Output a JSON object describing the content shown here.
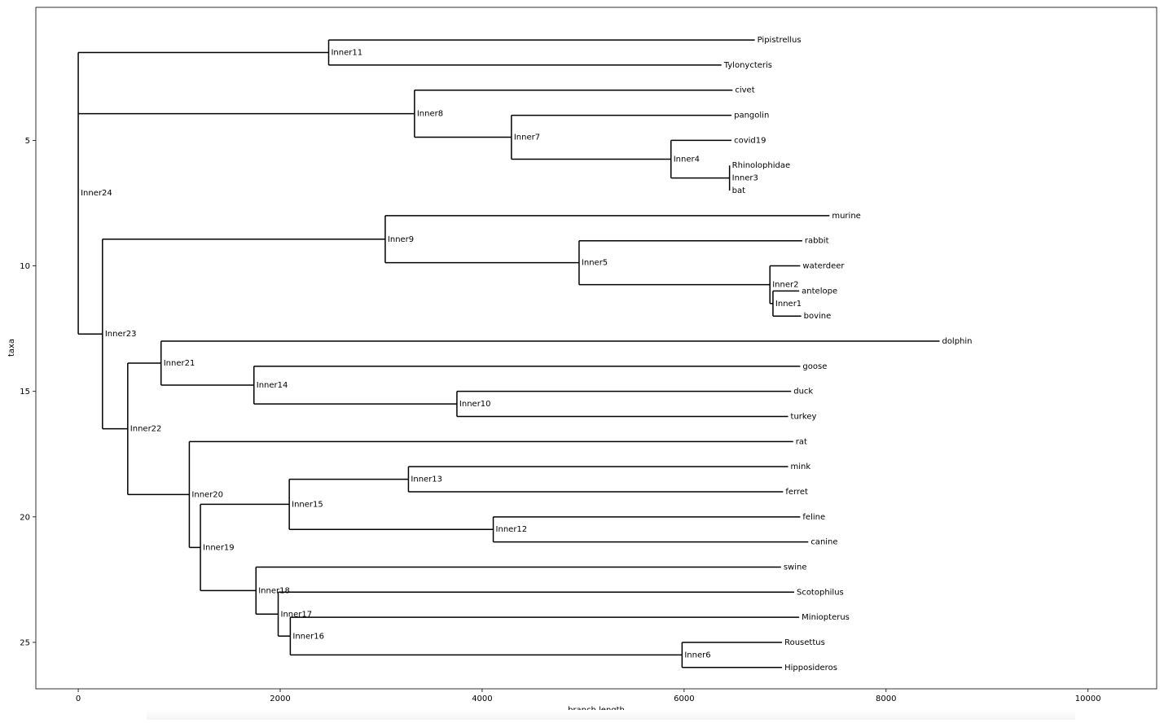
{
  "chart_data": {
    "type": "dendrogram",
    "xlabel": "branch length",
    "ylabel": "taxa",
    "xlim": [
      -420,
      10680
    ],
    "ylim": [
      26.85,
      -0.3
    ],
    "x_ticks": [
      0,
      2000,
      4000,
      6000,
      8000,
      10000
    ],
    "y_ticks": [
      5,
      10,
      15,
      20,
      25
    ],
    "grid": false,
    "leaves": [
      {
        "name": "Pipistrellus",
        "x": 6700,
        "y": 1
      },
      {
        "name": "Tylonycteris",
        "x": 6370,
        "y": 2
      },
      {
        "name": "civet",
        "x": 6480,
        "y": 3
      },
      {
        "name": "pangolin",
        "x": 6470,
        "y": 4
      },
      {
        "name": "covid19",
        "x": 6470,
        "y": 5
      },
      {
        "name": "Rhinolophidae",
        "x": 6450,
        "y": 6
      },
      {
        "name": "bat",
        "x": 6450,
        "y": 7
      },
      {
        "name": "murine",
        "x": 7440,
        "y": 8
      },
      {
        "name": "rabbit",
        "x": 7170,
        "y": 9
      },
      {
        "name": "waterdeer",
        "x": 7150,
        "y": 10
      },
      {
        "name": "antelope",
        "x": 7140,
        "y": 11
      },
      {
        "name": "bovine",
        "x": 7160,
        "y": 12
      },
      {
        "name": "dolphin",
        "x": 8530,
        "y": 13
      },
      {
        "name": "goose",
        "x": 7150,
        "y": 14
      },
      {
        "name": "duck",
        "x": 7060,
        "y": 15
      },
      {
        "name": "turkey",
        "x": 7030,
        "y": 16
      },
      {
        "name": "rat",
        "x": 7080,
        "y": 17
      },
      {
        "name": "mink",
        "x": 7030,
        "y": 18
      },
      {
        "name": "ferret",
        "x": 6980,
        "y": 19
      },
      {
        "name": "feline",
        "x": 7150,
        "y": 20
      },
      {
        "name": "canine",
        "x": 7230,
        "y": 21
      },
      {
        "name": "swine",
        "x": 6960,
        "y": 22
      },
      {
        "name": "Scotophilus",
        "x": 7090,
        "y": 23
      },
      {
        "name": "Miniopterus",
        "x": 7140,
        "y": 24
      },
      {
        "name": "Rousettus",
        "x": 6970,
        "y": 25
      },
      {
        "name": "Hipposideros",
        "x": 6970,
        "y": 26
      }
    ],
    "inner_nodes": [
      {
        "name": "Inner1",
        "x": 6880,
        "y": 11.5,
        "children": [
          "antelope",
          "bovine"
        ]
      },
      {
        "name": "Inner2",
        "x": 6850,
        "y": 10.75,
        "children": [
          "waterdeer",
          "Inner1"
        ]
      },
      {
        "name": "Inner3",
        "x": 6450,
        "y": 6.5,
        "children": [
          "Rhinolophidae",
          "bat"
        ]
      },
      {
        "name": "Inner4",
        "x": 5870,
        "y": 5.75,
        "children": [
          "covid19",
          "Inner3"
        ]
      },
      {
        "name": "Inner5",
        "x": 4960,
        "y": 9.875,
        "children": [
          "rabbit",
          "Inner2"
        ]
      },
      {
        "name": "Inner6",
        "x": 5980,
        "y": 25.5,
        "children": [
          "Rousettus",
          "Hipposideros"
        ]
      },
      {
        "name": "Inner7",
        "x": 4290,
        "y": 4.875,
        "children": [
          "pangolin",
          "Inner4"
        ]
      },
      {
        "name": "Inner8",
        "x": 3330,
        "y": 3.9375,
        "children": [
          "civet",
          "Inner7"
        ]
      },
      {
        "name": "Inner9",
        "x": 3040,
        "y": 8.9375,
        "children": [
          "murine",
          "Inner5"
        ]
      },
      {
        "name": "Inner10",
        "x": 3750,
        "y": 15.5,
        "children": [
          "duck",
          "turkey"
        ]
      },
      {
        "name": "Inner11",
        "x": 2480,
        "y": 1.5,
        "children": [
          "Pipistrellus",
          "Tylonycteris"
        ]
      },
      {
        "name": "Inner12",
        "x": 4110,
        "y": 20.5,
        "children": [
          "feline",
          "canine"
        ]
      },
      {
        "name": "Inner13",
        "x": 3270,
        "y": 18.5,
        "children": [
          "mink",
          "ferret"
        ]
      },
      {
        "name": "Inner14",
        "x": 1740,
        "y": 14.75,
        "children": [
          "goose",
          "Inner10"
        ]
      },
      {
        "name": "Inner15",
        "x": 2090,
        "y": 19.5,
        "children": [
          "Inner13",
          "Inner12"
        ]
      },
      {
        "name": "Inner16",
        "x": 2100,
        "y": 24.75,
        "children": [
          "Miniopterus",
          "Inner6"
        ]
      },
      {
        "name": "Inner17",
        "x": 1980,
        "y": 23.875,
        "children": [
          "Scotophilus",
          "Inner16"
        ]
      },
      {
        "name": "Inner18",
        "x": 1760,
        "y": 22.9375,
        "children": [
          "swine",
          "Inner17"
        ]
      },
      {
        "name": "Inner19",
        "x": 1210,
        "y": 21.21875,
        "children": [
          "Inner15",
          "Inner18"
        ]
      },
      {
        "name": "Inner20",
        "x": 1100,
        "y": 19.109375,
        "children": [
          "rat",
          "Inner19"
        ]
      },
      {
        "name": "Inner21",
        "x": 820,
        "y": 13.875,
        "children": [
          "dolphin",
          "Inner14"
        ]
      },
      {
        "name": "Inner22",
        "x": 490,
        "y": 16.4921875,
        "children": [
          "Inner21",
          "Inner20"
        ]
      },
      {
        "name": "Inner23",
        "x": 240,
        "y": 12.71484375,
        "children": [
          "Inner9",
          "Inner22"
        ]
      },
      {
        "name": "Inner24",
        "x": 0,
        "y": 7.1,
        "children": [
          "Inner11",
          "Inner8",
          "Inner23"
        ]
      }
    ]
  }
}
